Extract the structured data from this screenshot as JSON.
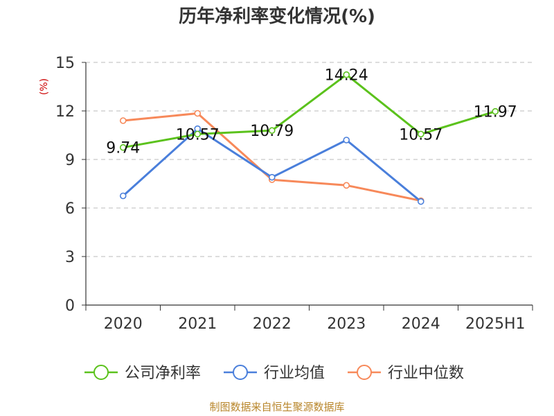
{
  "chart_data": {
    "type": "line",
    "title": "历年净利率变化情况(%)",
    "ylabel": "(%)",
    "xlabel": "",
    "categories": [
      "2020",
      "2021",
      "2022",
      "2023",
      "2024",
      "2025H1"
    ],
    "ylim": [
      0,
      15
    ],
    "yticks": [
      0,
      3,
      6,
      9,
      12,
      15
    ],
    "grid": true,
    "legend_position": "bottom",
    "series": [
      {
        "name": "公司净利率",
        "color": "#5bc21c",
        "values": [
          9.74,
          10.57,
          10.79,
          14.24,
          10.57,
          11.97
        ],
        "show_labels": true
      },
      {
        "name": "行业均值",
        "color": "#4a7fdb",
        "values": [
          6.75,
          10.9,
          7.9,
          10.2,
          6.4,
          null
        ],
        "show_labels": false
      },
      {
        "name": "行业中位数",
        "color": "#f7895a",
        "values": [
          11.4,
          11.85,
          7.75,
          7.4,
          6.45,
          null
        ],
        "show_labels": false
      }
    ],
    "data_labels": [
      "9.74",
      "10.57",
      "10.79",
      "14.24",
      "10.57",
      "11.97"
    ]
  },
  "source": "制图数据来自恒生聚源数据库",
  "colors": {
    "ylabel": "#cc0000",
    "source": "#b8862b",
    "grid": "#bbbbbb",
    "axis": "#333333"
  }
}
